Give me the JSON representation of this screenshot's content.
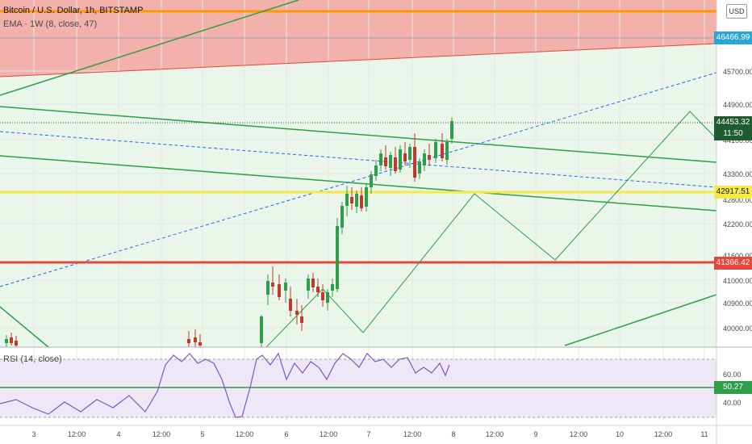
{
  "header": {
    "symbol_title": "Bitcoin / U.S. Dollar, 1h, BITSTAMP",
    "indicator": "EMA · 1W (8, close, 47)",
    "currency": "USD",
    "rsi_label": "RSI (14, close)"
  },
  "price_axis": {
    "ticks": [
      "45700.00",
      "44900.00",
      "44100.00",
      "43300.00",
      "42800.00",
      "42200.00",
      "41600.00",
      "41000.00",
      "40900.00",
      "40000.00"
    ],
    "tags": [
      {
        "text": "46466.99",
        "color": "#26a6d9"
      },
      {
        "text": "44453.32",
        "color": "#1e5b2e"
      },
      {
        "text": "11:50",
        "color": "#1e5b2e"
      },
      {
        "text": "42917.51",
        "color": "#f5e94a"
      },
      {
        "text": "41366.42",
        "color": "#e8453c"
      }
    ]
  },
  "rsi_axis": {
    "ticks": [
      "60.00",
      "40.00"
    ],
    "tag": {
      "text": "50.27",
      "color": "#2e9e4a"
    }
  },
  "time_axis": [
    "3",
    "12:00",
    "4",
    "12:00",
    "5",
    "12:00",
    "6",
    "12:00",
    "7",
    "12:00",
    "8",
    "12:00",
    "9",
    "12:00",
    "10",
    "12:00",
    "11"
  ],
  "colors": {
    "up": "#2e9e4a",
    "down": "#c0392b",
    "green_line": "#2e9e4a",
    "red_line": "#e8453c",
    "yellow_line": "#f5e94a",
    "orange_line": "#ff9800",
    "blue_dash": "#2962ff",
    "rsi": "#7e57c2"
  }
}
